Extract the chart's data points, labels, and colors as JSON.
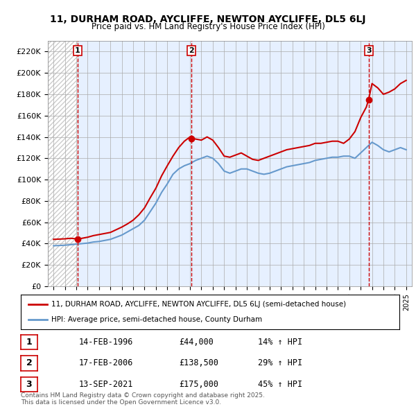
{
  "title": "11, DURHAM ROAD, AYCLIFFE, NEWTON AYCLIFFE, DL5 6LJ",
  "subtitle": "Price paid vs. HM Land Registry's House Price Index (HPI)",
  "ylabel_ticks": [
    "£0",
    "£20K",
    "£40K",
    "£60K",
    "£80K",
    "£100K",
    "£120K",
    "£140K",
    "£160K",
    "£180K",
    "£200K",
    "£220K"
  ],
  "ytick_values": [
    0,
    20000,
    40000,
    60000,
    80000,
    100000,
    120000,
    140000,
    160000,
    180000,
    200000,
    220000
  ],
  "ylim": [
    0,
    230000
  ],
  "xlim_start": 1993.5,
  "xlim_end": 2025.5,
  "background_color": "#f0f4ff",
  "hatch_color": "#cccccc",
  "grid_color": "#aaaaaa",
  "red_line_color": "#cc0000",
  "blue_line_color": "#6699cc",
  "sale_marker_color": "#cc0000",
  "vline_color": "#cc0000",
  "purchase_events": [
    {
      "label": "1",
      "date_x": 1996.12,
      "price": 44000,
      "date_str": "14-FEB-1996",
      "price_str": "£44,000",
      "pct_str": "14% ↑ HPI"
    },
    {
      "label": "2",
      "date_x": 2006.12,
      "price": 138500,
      "date_str": "17-FEB-2006",
      "price_str": "£138,500",
      "pct_str": "29% ↑ HPI"
    },
    {
      "label": "3",
      "date_x": 2021.7,
      "price": 175000,
      "date_str": "13-SEP-2021",
      "price_str": "£175,000",
      "pct_str": "45% ↑ HPI"
    }
  ],
  "legend_line1": "11, DURHAM ROAD, AYCLIFFE, NEWTON AYCLIFFE, DL5 6LJ (semi-detached house)",
  "legend_line2": "HPI: Average price, semi-detached house, County Durham",
  "footnote": "Contains HM Land Registry data © Crown copyright and database right 2025.\nThis data is licensed under the Open Government Licence v3.0.",
  "hpi_data": {
    "years": [
      1994,
      1995,
      1995.5,
      1996,
      1996.5,
      1997,
      1997.5,
      1998,
      1998.5,
      1999,
      1999.5,
      2000,
      2000.5,
      2001,
      2001.5,
      2002,
      2002.5,
      2003,
      2003.5,
      2004,
      2004.5,
      2005,
      2005.5,
      2006,
      2006.5,
      2007,
      2007.5,
      2008,
      2008.5,
      2009,
      2009.5,
      2010,
      2010.5,
      2011,
      2011.5,
      2012,
      2012.5,
      2013,
      2013.5,
      2014,
      2014.5,
      2015,
      2015.5,
      2016,
      2016.5,
      2017,
      2017.5,
      2018,
      2018.5,
      2019,
      2019.5,
      2020,
      2020.5,
      2021,
      2021.5,
      2022,
      2022.5,
      2023,
      2023.5,
      2024,
      2024.5,
      2025
    ],
    "values": [
      38000,
      38500,
      39000,
      39500,
      40000,
      40500,
      41500,
      42000,
      43000,
      44000,
      46000,
      48000,
      51000,
      54000,
      57000,
      62000,
      70000,
      78000,
      88000,
      96000,
      105000,
      110000,
      113000,
      115000,
      118000,
      120000,
      122000,
      120000,
      115000,
      108000,
      106000,
      108000,
      110000,
      110000,
      108000,
      106000,
      105000,
      106000,
      108000,
      110000,
      112000,
      113000,
      114000,
      115000,
      116000,
      118000,
      119000,
      120000,
      121000,
      121000,
      122000,
      122000,
      120000,
      125000,
      130000,
      135000,
      132000,
      128000,
      126000,
      128000,
      130000,
      128000
    ]
  },
  "price_line_data": {
    "years": [
      1994,
      1995,
      1995.5,
      1996,
      1996.12,
      1996.5,
      1997,
      1997.5,
      1998,
      1998.5,
      1999,
      1999.5,
      2000,
      2000.5,
      2001,
      2001.5,
      2002,
      2002.5,
      2003,
      2003.5,
      2004,
      2004.5,
      2005,
      2005.5,
      2006,
      2006.12,
      2006.5,
      2007,
      2007.5,
      2008,
      2008.5,
      2009,
      2009.5,
      2010,
      2010.5,
      2011,
      2011.5,
      2012,
      2012.5,
      2013,
      2013.5,
      2014,
      2014.5,
      2015,
      2015.5,
      2016,
      2016.5,
      2017,
      2017.5,
      2018,
      2018.5,
      2019,
      2019.5,
      2020,
      2020.5,
      2021,
      2021.5,
      2021.7,
      2022,
      2022.5,
      2023,
      2023.5,
      2024,
      2024.5,
      2025
    ],
    "values": [
      44000,
      44500,
      45000,
      44500,
      44000,
      45000,
      46000,
      47500,
      48500,
      49500,
      50500,
      53000,
      55500,
      58500,
      62000,
      67000,
      73500,
      83000,
      92000,
      103500,
      113000,
      122000,
      130000,
      136000,
      140000,
      138500,
      138000,
      137000,
      140000,
      137000,
      130000,
      122000,
      121000,
      123000,
      125000,
      122000,
      119000,
      118000,
      120000,
      122000,
      124000,
      126000,
      128000,
      129000,
      130000,
      131000,
      132000,
      134000,
      134000,
      135000,
      136000,
      136000,
      134000,
      138000,
      145000,
      158000,
      168000,
      175000,
      190000,
      186000,
      180000,
      182000,
      185000,
      190000,
      193000
    ]
  }
}
